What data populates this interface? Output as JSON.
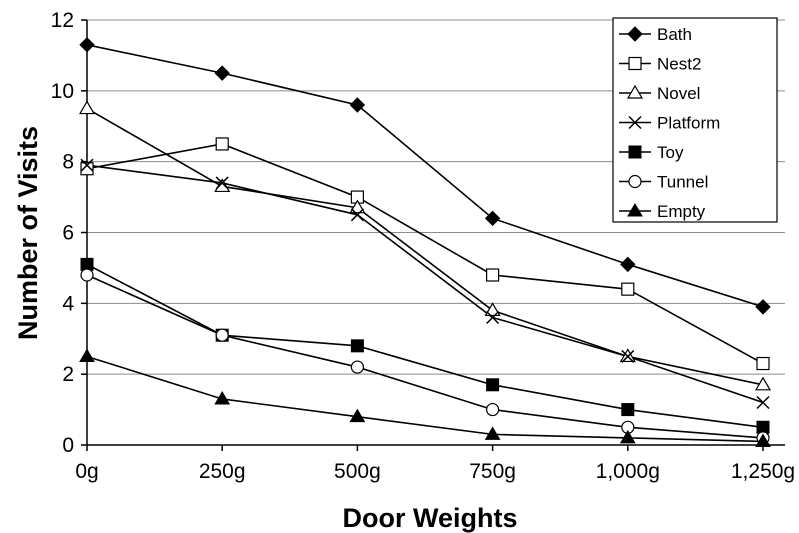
{
  "chart_data": {
    "type": "line",
    "title": "",
    "xlabel": "Door Weights",
    "ylabel": "Number of Visits",
    "categories": [
      "0g",
      "250g",
      "500g",
      "750g",
      "1,000g",
      "1,250g"
    ],
    "ylim": [
      0,
      12
    ],
    "yticks": [
      0,
      2,
      4,
      6,
      8,
      10,
      12
    ],
    "grid": "horizontal",
    "legend_position": "top-right",
    "series": [
      {
        "name": "Bath",
        "marker": "diamond-filled",
        "values": [
          11.3,
          10.5,
          9.6,
          6.4,
          5.1,
          3.9
        ]
      },
      {
        "name": "Nest2",
        "marker": "square-open",
        "values": [
          7.8,
          8.5,
          7.0,
          4.8,
          4.4,
          2.3
        ]
      },
      {
        "name": "Novel",
        "marker": "triangle-open",
        "values": [
          9.5,
          7.3,
          6.7,
          3.8,
          2.5,
          1.7
        ]
      },
      {
        "name": "Platform",
        "marker": "x",
        "values": [
          7.9,
          7.4,
          6.5,
          3.6,
          2.5,
          1.2
        ]
      },
      {
        "name": "Toy",
        "marker": "square-filled",
        "values": [
          5.1,
          3.1,
          2.8,
          1.7,
          1.0,
          0.5
        ]
      },
      {
        "name": "Tunnel",
        "marker": "circle-open",
        "values": [
          4.8,
          3.1,
          2.2,
          1.0,
          0.5,
          0.2
        ]
      },
      {
        "name": "Empty",
        "marker": "triangle-filled",
        "values": [
          2.5,
          1.3,
          0.8,
          0.3,
          0.2,
          0.1
        ]
      }
    ]
  }
}
